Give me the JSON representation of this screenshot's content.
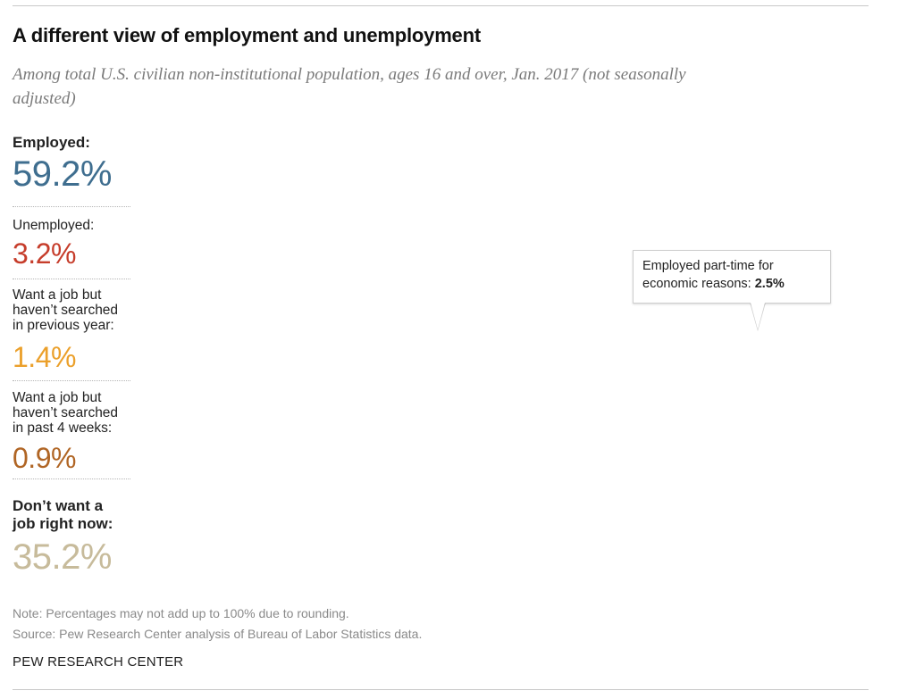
{
  "title": "A different view of employment and unemployment",
  "subtitle": "Among total U.S. civilian non-institutional population, ages 16 and over, Jan. 2017 (not seasonally adjusted)",
  "colors": {
    "employed": "#3f6e8f",
    "employed_part_time": "#8aa3bb",
    "unemployed": "#c63d2b",
    "want_job_prev_year": "#eba02b",
    "want_job_4_weeks": "#b06524",
    "dont_want": "#c7bb9b"
  },
  "chart_data": {
    "type": "icon-array",
    "total_icons": 100,
    "icons_per_row": 20,
    "categories": [
      {
        "key": "employed",
        "label": "Employed:",
        "value": "59.2%",
        "percent": 59.2,
        "color": "#3f6e8f"
      },
      {
        "key": "unemployed",
        "label": "Unemployed:",
        "value": "3.2%",
        "percent": 3.2,
        "color": "#c63d2b"
      },
      {
        "key": "want_job_prev_year",
        "label": "Want a job but haven't searched in previous year:",
        "value": "1.4%",
        "percent": 1.4,
        "color": "#eba02b"
      },
      {
        "key": "want_job_4_weeks",
        "label": "Want a job but haven't searched in past 4 weeks:",
        "value": "0.9%",
        "percent": 0.9,
        "color": "#b06524"
      },
      {
        "key": "dont_want",
        "label": "Don't want a job right now:",
        "value": "35.2%",
        "percent": 35.2,
        "color": "#c7bb9b"
      }
    ],
    "sub_segment": {
      "of": "employed",
      "label": "Employed part-time for economic reasons:",
      "value": "2.5%",
      "percent": 2.5,
      "color": "#8aa3bb"
    }
  },
  "labels": {
    "employed": {
      "label": "Employed:",
      "value": "59.2%"
    },
    "unemployed": {
      "label": "Unemployed:",
      "value": "3.2%"
    },
    "want_prev_year": {
      "line1": "Want a job but",
      "line2": "haven’t searched",
      "line3": "in previous year:",
      "value": "1.4%"
    },
    "want_4_weeks": {
      "line1": "Want a job but",
      "line2": "haven’t searched",
      "line3": "in past 4 weeks:",
      "value": "0.9%"
    },
    "dont_want": {
      "line1": "Don’t want a",
      "line2": "job right now:",
      "value": "35.2%"
    }
  },
  "callout": {
    "text": "Employed part-time for economic reasons:",
    "value": "2.5%"
  },
  "note": "Note: Percentages may not add up to 100% due to rounding.",
  "source": "Source: Pew Research Center analysis of Bureau of Labor Statistics data.",
  "brand": "PEW RESEARCH CENTER"
}
